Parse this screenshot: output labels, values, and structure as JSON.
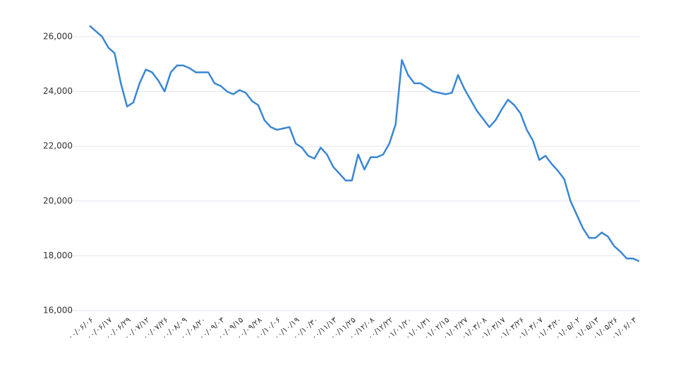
{
  "chart_data": {
    "type": "line",
    "categories": [
      "۰۰/۰۶/۰۶",
      null,
      null,
      "۰۰/۰۶/۱۷",
      null,
      null,
      "۰۰/۰۶/۲۹",
      null,
      null,
      "۰۰/۰۷/۱۲",
      null,
      null,
      "۰۰/۰۷/۲۶",
      null,
      null,
      "۰۰/۰۸/۰۹",
      null,
      null,
      "۰۰/۰۸/۲۰",
      null,
      null,
      "۰۰/۰۹/۰۳",
      null,
      null,
      "۰۰/۰۹/۱۵",
      null,
      null,
      "۰۰/۰۹/۲۸",
      null,
      null,
      "۰۰/۱۰/۰۶",
      null,
      null,
      "۰۰/۱۰/۱۹",
      null,
      null,
      "۰۰/۱۰/۳۰",
      null,
      null,
      "۰۰/۱۱/۱۳",
      null,
      null,
      "۰۰/۱۱/۲۵",
      null,
      null,
      "۰۰/۱۲/۰۸",
      null,
      null,
      "۰۰/۱۲/۲۲",
      null,
      null,
      "۰۱/۰۱/۲۰",
      null,
      null,
      "۰۱/۰۱/۳۱",
      null,
      null,
      "۰۱/۰۲/۱۵",
      null,
      null,
      "۰۱/۰۲/۲۷",
      null,
      null,
      "۰۱/۰۳/۰۸",
      null,
      null,
      "۰۱/۰۳/۱۷",
      null,
      null,
      "۰۱/۰۳/۲۶",
      null,
      null,
      "۰۱/۰۴/۰۷",
      null,
      null,
      "۰۱/۰۴/۲۰",
      null,
      null,
      "۰۱/۰۵/۰۲",
      null,
      null,
      "۰۱/۰۵/۱۳",
      null,
      null,
      "۰۱/۰۵/۲۶",
      null,
      null,
      "۰۱/۰۶/۰۳",
      null
    ],
    "values": [
      26400,
      26200,
      26000,
      25600,
      25400,
      24300,
      23450,
      23600,
      24300,
      24800,
      24700,
      24400,
      24000,
      24700,
      24950,
      24950,
      24850,
      24700,
      24700,
      24700,
      24300,
      24200,
      24000,
      23900,
      24050,
      23950,
      23650,
      23500,
      22950,
      22700,
      22600,
      22650,
      22700,
      22100,
      21950,
      21650,
      21550,
      21950,
      21700,
      21250,
      21000,
      20750,
      20750,
      21700,
      21150,
      21600,
      21600,
      21700,
      22100,
      22800,
      25150,
      24600,
      24300,
      24300,
      24150,
      24000,
      23950,
      23900,
      23950,
      24600,
      24100,
      23700,
      23300,
      23000,
      22700,
      22950,
      23350,
      23700,
      23500,
      23200,
      22600,
      22200,
      21500,
      21650,
      21350,
      21100,
      20800,
      20000,
      19500,
      19000,
      18650,
      18650,
      18850,
      18700,
      18350,
      18150,
      17900,
      17900,
      17800
    ],
    "color": "#3a86d4",
    "ylim": [
      16000,
      26500
    ],
    "yticks": [
      {
        "value": 16000,
        "label": "16,000"
      },
      {
        "value": 18000,
        "label": "18,000"
      },
      {
        "value": 20000,
        "label": "20,000"
      },
      {
        "value": 22000,
        "label": "22,000"
      },
      {
        "value": 24000,
        "label": "24,000"
      },
      {
        "value": 26000,
        "label": "26,000"
      }
    ],
    "grid": true
  }
}
